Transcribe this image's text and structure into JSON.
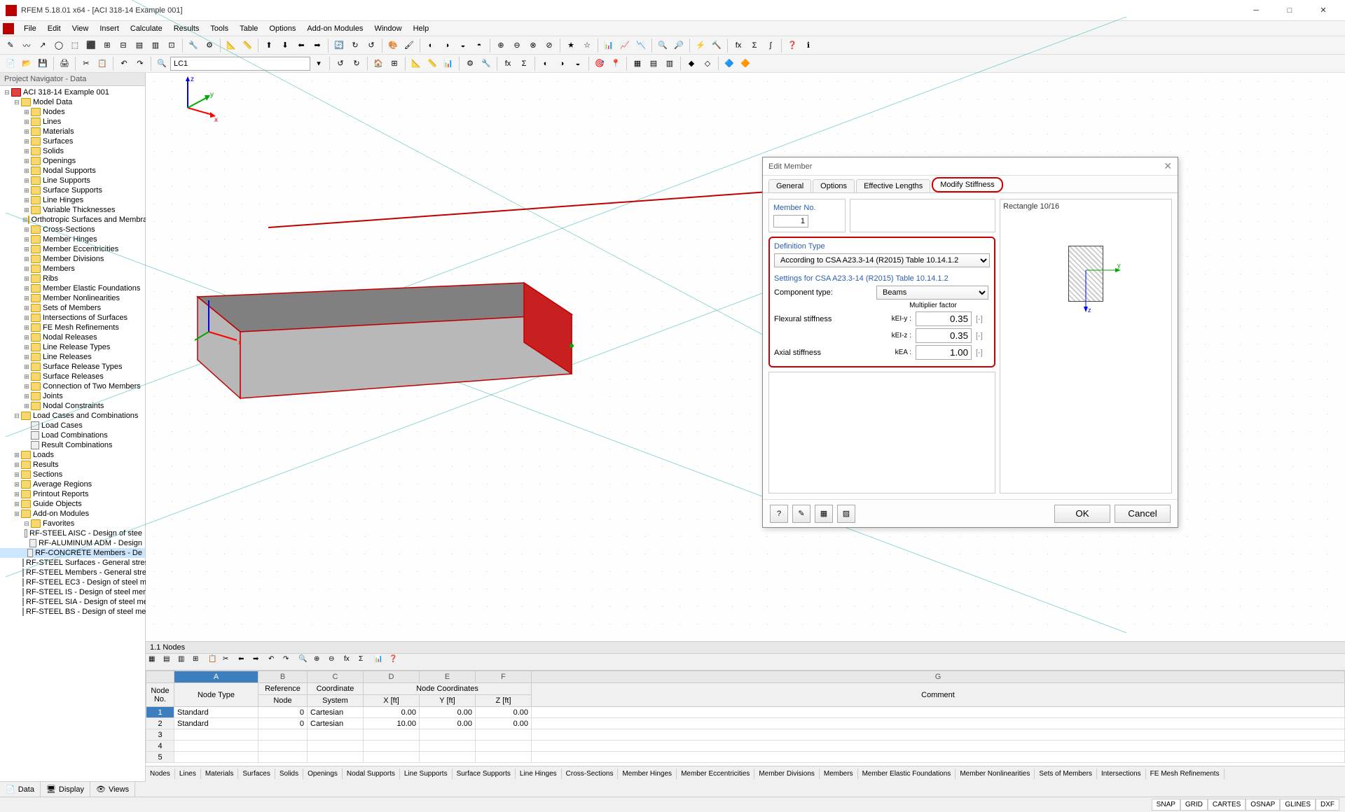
{
  "app": {
    "title": "RFEM 5.18.01 x64 - [ACI 318-14 Example 001]"
  },
  "menu": [
    "File",
    "Edit",
    "View",
    "Insert",
    "Calculate",
    "Results",
    "Tools",
    "Table",
    "Options",
    "Add-on Modules",
    "Window",
    "Help"
  ],
  "toolbar2_combo": "LC1",
  "navigator": {
    "title": "Project Navigator - Data",
    "root": "ACI 318-14 Example 001",
    "model_data": "Model Data",
    "items": [
      "Nodes",
      "Lines",
      "Materials",
      "Surfaces",
      "Solids",
      "Openings",
      "Nodal Supports",
      "Line Supports",
      "Surface Supports",
      "Line Hinges",
      "Variable Thicknesses",
      "Orthotropic Surfaces and Membra",
      "Cross-Sections",
      "Member Hinges",
      "Member Eccentricities",
      "Member Divisions",
      "Members",
      "Ribs",
      "Member Elastic Foundations",
      "Member Nonlinearities",
      "Sets of Members",
      "Intersections of Surfaces",
      "FE Mesh Refinements",
      "Nodal Releases",
      "Line Release Types",
      "Line Releases",
      "Surface Release Types",
      "Surface Releases",
      "Connection of Two Members",
      "Joints",
      "Nodal Constraints"
    ],
    "load_group": "Load Cases and Combinations",
    "load_items": [
      "Load Cases",
      "Load Combinations",
      "Result Combinations"
    ],
    "other_top": [
      "Loads",
      "Results",
      "Sections",
      "Average Regions",
      "Printout Reports",
      "Guide Objects",
      "Add-on Modules"
    ],
    "favorites": "Favorites",
    "fav_items": [
      "RF-STEEL AISC - Design of stee",
      "RF-ALUMINUM ADM - Design",
      "RF-CONCRETE Members - De",
      "RF-STEEL Surfaces - General stres",
      "RF-STEEL Members - General stres",
      "RF-STEEL EC3 - Design of steel me",
      "RF-STEEL IS - Design of steel mem",
      "RF-STEEL SIA - Design of steel me",
      "RF-STEEL BS - Design of steel men"
    ],
    "bottom_tabs": [
      "Data",
      "Display",
      "Views"
    ]
  },
  "beam": {
    "fill": "#b8b8b8",
    "side_fill": "#c82020",
    "top_fill": "#808080",
    "outline": "#c00000"
  },
  "dialog": {
    "title": "Edit Member",
    "tabs": [
      "General",
      "Options",
      "Effective Lengths",
      "Modify Stiffness"
    ],
    "active_tab": 3,
    "member_no_label": "Member No.",
    "member_no": "1",
    "def_type_label": "Definition Type",
    "def_type": "According to CSA A23.3-14 (R2015) Table 10.14.1.2",
    "settings_label": "Settings for CSA A23.3-14 (R2015) Table 10.14.1.2",
    "component_label": "Component type:",
    "component_value": "Beams",
    "mult_label": "Multiplier factor",
    "flexural_label": "Flexural stiffness",
    "axial_label": "Axial stiffness",
    "k_ely": "kEI-y :",
    "k_elz": "kEI-z :",
    "k_ea": "kEA :",
    "val_ely": "0.35",
    "val_elz": "0.35",
    "val_ea": "1.00",
    "unit": "[-]",
    "cs_label": "Rectangle 10/16",
    "ok": "OK",
    "cancel": "Cancel"
  },
  "table": {
    "tab_label": "1.1 Nodes",
    "col_letters": [
      "A",
      "B",
      "C",
      "D",
      "E",
      "F",
      "G"
    ],
    "headers_r1": [
      "Node",
      "Reference",
      "Coordinate",
      "",
      "Node Coordinates",
      "",
      "Comment"
    ],
    "headers_r2": [
      "No.",
      "Node Type",
      "Node",
      "System",
      "X [ft]",
      "Y [ft]",
      "Z [ft]",
      ""
    ],
    "rows": [
      {
        "no": "1",
        "type": "Standard",
        "ref": "0",
        "sys": "Cartesian",
        "x": "0.00",
        "y": "0.00",
        "z": "0.00"
      },
      {
        "no": "2",
        "type": "Standard",
        "ref": "0",
        "sys": "Cartesian",
        "x": "10.00",
        "y": "0.00",
        "z": "0.00"
      },
      {
        "no": "3"
      },
      {
        "no": "4"
      },
      {
        "no": "5"
      }
    ],
    "bottom_tabs": [
      "Nodes",
      "Lines",
      "Materials",
      "Surfaces",
      "Solids",
      "Openings",
      "Nodal Supports",
      "Line Supports",
      "Surface Supports",
      "Line Hinges",
      "Cross-Sections",
      "Member Hinges",
      "Member Eccentricities",
      "Member Divisions",
      "Members",
      "Member Elastic Foundations",
      "Member Nonlinearities",
      "Sets of Members",
      "Intersections",
      "FE Mesh Refinements"
    ]
  },
  "status": [
    "SNAP",
    "GRID",
    "CARTES",
    "OSNAP",
    "GLINES",
    "DXF"
  ]
}
